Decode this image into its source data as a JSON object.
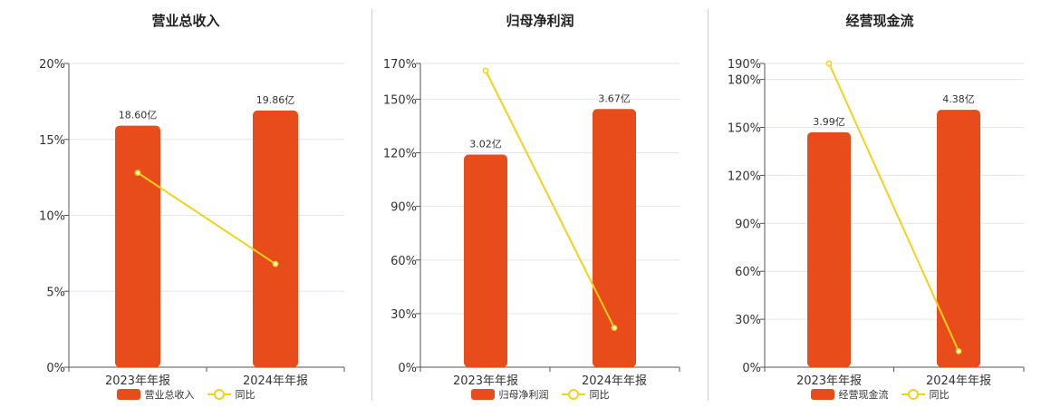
{
  "colors": {
    "bar": "#e84c1a",
    "line": "#f2d21b",
    "grid": "#e3e6ee",
    "axis": "#555555"
  },
  "chart_data": [
    {
      "type": "bar",
      "title": "营业总收入",
      "categories": [
        "2023年年报",
        "2024年年报"
      ],
      "yticks": [
        "0%",
        "5%",
        "10%",
        "15%",
        "20%"
      ],
      "ylim": [
        0,
        20
      ],
      "series": [
        {
          "name": "营业总收入",
          "type": "bar",
          "values": [
            18.6,
            19.86
          ],
          "labels": [
            "18.60亿",
            "19.86亿"
          ]
        },
        {
          "name": "同比",
          "type": "line",
          "values": [
            12.8,
            6.8
          ]
        }
      ],
      "bar_pct": [
        15.9,
        16.9
      ],
      "grid": true,
      "legend": "bottom"
    },
    {
      "type": "bar",
      "title": "归母净利润",
      "categories": [
        "2023年年报",
        "2024年年报"
      ],
      "yticks": [
        "0%",
        "30%",
        "60%",
        "90%",
        "120%",
        "150%",
        "170%"
      ],
      "ylim": [
        0,
        170
      ],
      "series": [
        {
          "name": "归母净利润",
          "type": "bar",
          "values": [
            3.02,
            3.67
          ],
          "labels": [
            "3.02亿",
            "3.67亿"
          ]
        },
        {
          "name": "同比",
          "type": "line",
          "values": [
            166,
            22
          ]
        }
      ],
      "bar_pct": [
        119,
        144.5
      ],
      "grid": true,
      "legend": "bottom"
    },
    {
      "type": "bar",
      "title": "经营现金流",
      "categories": [
        "2023年年报",
        "2024年年报"
      ],
      "yticks": [
        "0%",
        "30%",
        "60%",
        "90%",
        "120%",
        "150%",
        "180%",
        "190%"
      ],
      "ylim": [
        0,
        190
      ],
      "series": [
        {
          "name": "经营现金流",
          "type": "bar",
          "values": [
            3.99,
            4.38
          ],
          "labels": [
            "3.99亿",
            "4.38亿"
          ]
        },
        {
          "name": "同比",
          "type": "line",
          "values": [
            190,
            10
          ]
        }
      ],
      "bar_pct": [
        147,
        161
      ],
      "grid": true,
      "legend": "bottom"
    }
  ]
}
